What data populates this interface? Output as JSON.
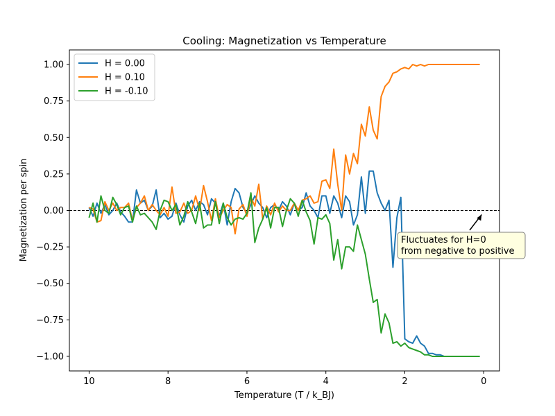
{
  "chart_data": {
    "type": "line",
    "title": "Cooling: Magnetization vs Temperature",
    "xlabel": "Temperature (T / k_BJ)",
    "ylabel": "Magnetization per spin",
    "xlim": [
      10.5,
      -0.4
    ],
    "ylim": [
      -1.1,
      1.1
    ],
    "xticks": [
      10,
      8,
      6,
      4,
      2,
      0
    ],
    "yticks": [
      1.0,
      0.75,
      0.5,
      0.25,
      0.0,
      -0.25,
      -0.5,
      -0.75,
      -1.0
    ],
    "xtick_labels": [
      "10",
      "8",
      "6",
      "4",
      "2",
      "0"
    ],
    "ytick_labels": [
      "1.00",
      "0.75",
      "0.50",
      "0.25",
      "0.00",
      "−0.25",
      "−0.50",
      "−0.75",
      "−1.00"
    ],
    "grid": false,
    "legend_position": "top-left",
    "reference_line": {
      "y": 0.0,
      "style": "dashed",
      "color": "#000000"
    },
    "annotation": {
      "text_lines": [
        "Fluctuates for H=0",
        "from negative to positive"
      ],
      "arrow_target": [
        0.0,
        0.0
      ],
      "background": "#ffffe0"
    },
    "series": [
      {
        "name": "H = 0.00",
        "color": "#1f77b4",
        "x": [
          10.0,
          9.9,
          9.8,
          9.7,
          9.6,
          9.5,
          9.4,
          9.3,
          9.2,
          9.1,
          9.0,
          8.9,
          8.8,
          8.7,
          8.6,
          8.5,
          8.4,
          8.3,
          8.2,
          8.1,
          8.0,
          7.9,
          7.8,
          7.7,
          7.6,
          7.5,
          7.4,
          7.3,
          7.2,
          7.1,
          7.0,
          6.9,
          6.8,
          6.7,
          6.6,
          6.5,
          6.4,
          6.3,
          6.2,
          6.1,
          6.0,
          5.9,
          5.8,
          5.7,
          5.6,
          5.5,
          5.4,
          5.3,
          5.2,
          5.1,
          5.0,
          4.9,
          4.8,
          4.7,
          4.6,
          4.5,
          4.4,
          4.3,
          4.2,
          4.1,
          4.0,
          3.9,
          3.8,
          3.7,
          3.6,
          3.5,
          3.4,
          3.3,
          3.2,
          3.1,
          3.0,
          2.9,
          2.8,
          2.7,
          2.6,
          2.5,
          2.4,
          2.3,
          2.2,
          2.1,
          2.0,
          1.9,
          1.8,
          1.7,
          1.6,
          1.5,
          1.4,
          1.3,
          1.2,
          1.1,
          1.0,
          0.9,
          0.8,
          0.7,
          0.6,
          0.5,
          0.4,
          0.3,
          0.2,
          0.1
        ],
        "values": [
          0.02,
          -0.04,
          0.05,
          -0.02,
          0.04,
          -0.03,
          0.0,
          0.05,
          -0.01,
          -0.04,
          -0.08,
          -0.08,
          0.14,
          0.05,
          0.07,
          0.0,
          0.03,
          0.14,
          -0.05,
          -0.02,
          -0.06,
          -0.04,
          0.05,
          -0.03,
          -0.08,
          0.03,
          0.07,
          0.0,
          0.06,
          0.04,
          -0.03,
          0.08,
          0.05,
          -0.04,
          0.05,
          -0.1,
          0.06,
          0.15,
          0.12,
          0.02,
          -0.02,
          0.04,
          0.1,
          0.05,
          0.02,
          -0.05,
          0.02,
          0.04,
          0.0,
          0.06,
          0.03,
          -0.03,
          0.05,
          0.0,
          0.02,
          0.12,
          0.03,
          0.0,
          -0.05,
          0.1,
          0.1,
          -0.02,
          0.1,
          0.05,
          -0.05,
          0.1,
          0.06,
          -0.1,
          -0.03,
          0.23,
          -0.02,
          0.27,
          0.27,
          0.12,
          0.05,
          0.0,
          0.07,
          -0.39,
          -0.05,
          0.09,
          -0.88,
          -0.9,
          -0.91,
          -0.86,
          -0.91,
          -0.93,
          -0.98,
          -0.98,
          -0.99,
          -0.99,
          -1.0,
          -1.0,
          -1.0,
          -1.0,
          -1.0,
          -1.0,
          -1.0,
          -1.0,
          -1.0,
          -1.0
        ]
      },
      {
        "name": "H = 0.10",
        "color": "#ff7f0e",
        "x": [
          10.0,
          9.9,
          9.8,
          9.7,
          9.6,
          9.5,
          9.4,
          9.3,
          9.2,
          9.1,
          9.0,
          8.9,
          8.8,
          8.7,
          8.6,
          8.5,
          8.4,
          8.3,
          8.2,
          8.1,
          8.0,
          7.9,
          7.8,
          7.7,
          7.6,
          7.5,
          7.4,
          7.3,
          7.2,
          7.1,
          7.0,
          6.9,
          6.8,
          6.7,
          6.6,
          6.5,
          6.4,
          6.3,
          6.2,
          6.1,
          6.0,
          5.9,
          5.8,
          5.7,
          5.6,
          5.5,
          5.4,
          5.3,
          5.2,
          5.1,
          5.0,
          4.9,
          4.8,
          4.7,
          4.6,
          4.5,
          4.4,
          4.3,
          4.2,
          4.1,
          4.0,
          3.9,
          3.8,
          3.7,
          3.6,
          3.5,
          3.4,
          3.3,
          3.2,
          3.1,
          3.0,
          2.9,
          2.8,
          2.7,
          2.6,
          2.5,
          2.4,
          2.3,
          2.2,
          2.1,
          2.0,
          1.9,
          1.8,
          1.7,
          1.6,
          1.5,
          1.4,
          1.3,
          1.2,
          1.1,
          1.0,
          0.9,
          0.8,
          0.7,
          0.6,
          0.5,
          0.4,
          0.3,
          0.2,
          0.1
        ],
        "values": [
          0.02,
          0.01,
          -0.08,
          -0.07,
          0.06,
          0.0,
          0.05,
          0.0,
          0.02,
          0.02,
          0.05,
          -0.07,
          0.02,
          0.05,
          0.1,
          0.0,
          0.04,
          0.0,
          -0.03,
          0.02,
          -0.04,
          0.16,
          -0.02,
          -0.01,
          0.05,
          -0.02,
          0.0,
          0.1,
          0.0,
          0.17,
          0.06,
          -0.07,
          0.08,
          -0.05,
          0.0,
          0.04,
          0.02,
          -0.16,
          0.01,
          0.04,
          -0.04,
          0.09,
          0.03,
          0.18,
          -0.06,
          0.03,
          -0.03,
          0.05,
          -0.01,
          0.03,
          0.0,
          0.0,
          0.05,
          0.0,
          0.07,
          0.08,
          0.1,
          0.05,
          0.06,
          0.2,
          0.21,
          0.15,
          0.42,
          0.18,
          0.0,
          0.38,
          0.25,
          0.39,
          0.32,
          0.59,
          0.51,
          0.71,
          0.55,
          0.49,
          0.78,
          0.85,
          0.88,
          0.94,
          0.95,
          0.97,
          0.98,
          0.97,
          1.0,
          0.99,
          1.0,
          0.99,
          1.0,
          1.0,
          1.0,
          1.0,
          1.0,
          1.0,
          1.0,
          1.0,
          1.0,
          1.0,
          1.0,
          1.0,
          1.0,
          1.0
        ]
      },
      {
        "name": "H = -0.10",
        "color": "#2ca02c",
        "x": [
          10.0,
          9.9,
          9.8,
          9.7,
          9.6,
          9.5,
          9.4,
          9.3,
          9.2,
          9.1,
          9.0,
          8.9,
          8.8,
          8.7,
          8.6,
          8.5,
          8.4,
          8.3,
          8.2,
          8.1,
          8.0,
          7.9,
          7.8,
          7.7,
          7.6,
          7.5,
          7.4,
          7.3,
          7.2,
          7.1,
          7.0,
          6.9,
          6.8,
          6.7,
          6.6,
          6.5,
          6.4,
          6.3,
          6.2,
          6.1,
          6.0,
          5.9,
          5.8,
          5.7,
          5.6,
          5.5,
          5.4,
          5.3,
          5.2,
          5.1,
          5.0,
          4.9,
          4.8,
          4.7,
          4.6,
          4.5,
          4.4,
          4.3,
          4.2,
          4.1,
          4.0,
          3.9,
          3.8,
          3.7,
          3.6,
          3.5,
          3.4,
          3.3,
          3.2,
          3.1,
          3.0,
          2.9,
          2.8,
          2.7,
          2.6,
          2.5,
          2.4,
          2.3,
          2.2,
          2.1,
          2.0,
          1.9,
          1.8,
          1.7,
          1.6,
          1.5,
          1.4,
          1.3,
          1.2,
          1.1,
          1.0,
          0.9,
          0.8,
          0.7,
          0.6,
          0.5,
          0.4,
          0.3,
          0.2,
          0.1
        ],
        "values": [
          -0.05,
          0.05,
          -0.08,
          0.1,
          0.0,
          -0.02,
          0.09,
          0.04,
          -0.03,
          0.02,
          0.03,
          -0.08,
          0.03,
          -0.03,
          -0.02,
          -0.05,
          -0.08,
          -0.13,
          0.0,
          0.07,
          0.06,
          0.0,
          0.04,
          -0.1,
          -0.04,
          0.06,
          -0.01,
          -0.09,
          0.05,
          -0.12,
          -0.1,
          -0.1,
          0.06,
          -0.09,
          0.05,
          -0.05,
          -0.1,
          -0.06,
          -0.05,
          -0.06,
          -0.02,
          0.12,
          -0.22,
          -0.12,
          -0.06,
          0.02,
          -0.12,
          0.02,
          0.02,
          -0.11,
          0.0,
          0.08,
          0.05,
          -0.04,
          0.07,
          -0.01,
          -0.07,
          -0.23,
          -0.05,
          -0.06,
          -0.03,
          -0.09,
          -0.34,
          -0.2,
          -0.4,
          -0.25,
          -0.25,
          -0.28,
          -0.1,
          -0.2,
          -0.3,
          -0.47,
          -0.63,
          -0.61,
          -0.84,
          -0.71,
          -0.77,
          -0.91,
          -0.9,
          -0.93,
          -0.91,
          -0.94,
          -0.95,
          -0.96,
          -0.97,
          -0.99,
          -0.99,
          -1.0,
          -1.0,
          -1.0,
          -1.0,
          -1.0,
          -1.0,
          -1.0,
          -1.0,
          -1.0,
          -1.0,
          -1.0,
          -1.0,
          -1.0
        ]
      }
    ]
  }
}
